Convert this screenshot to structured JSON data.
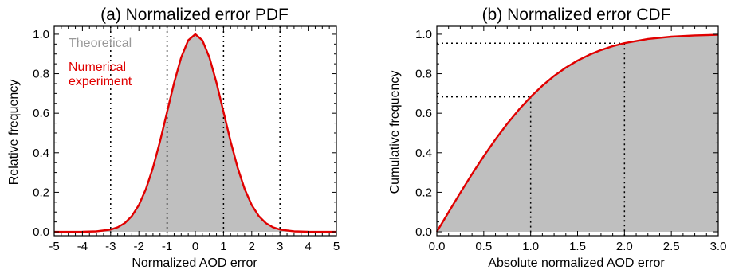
{
  "chart_data": [
    {
      "type": "area",
      "title": "(a) Normalized error PDF",
      "xlabel": "Normalized AOD error",
      "ylabel": "Relative frequency",
      "xlim": [
        -5,
        5
      ],
      "ylim": [
        -0.02,
        1.04
      ],
      "xticks": [
        -5,
        -4,
        -3,
        -2,
        -1,
        0,
        1,
        2,
        3,
        4,
        5
      ],
      "xtick_labels": [
        "-5",
        "-4",
        "-3",
        "-2",
        "-1",
        "0",
        "1",
        "2",
        "3",
        "4",
        "5"
      ],
      "yticks": [
        0.0,
        0.2,
        0.4,
        0.6,
        0.8,
        1.0
      ],
      "ytick_labels": [
        "0.0",
        "0.2",
        "0.4",
        "0.6",
        "0.8",
        "1.0"
      ],
      "series": [
        {
          "name": "Theoretical",
          "color": "#bfbfbf",
          "style": "filled",
          "x": [
            -5,
            -4.5,
            -4,
            -3.5,
            -3,
            -2.75,
            -2.5,
            -2.25,
            -2,
            -1.75,
            -1.5,
            -1.25,
            -1,
            -0.75,
            -0.5,
            -0.25,
            0,
            0.25,
            0.5,
            0.75,
            1,
            1.25,
            1.5,
            1.75,
            2,
            2.25,
            2.5,
            2.75,
            3,
            3.5,
            4,
            4.5,
            5
          ],
          "y": [
            0.0,
            0.0,
            0.0003,
            0.0022,
            0.0111,
            0.0228,
            0.0439,
            0.0796,
            0.1353,
            0.2163,
            0.3247,
            0.4578,
            0.6065,
            0.7548,
            0.8825,
            0.9692,
            1.0,
            0.9692,
            0.8825,
            0.7548,
            0.6065,
            0.4578,
            0.3247,
            0.2163,
            0.1353,
            0.0796,
            0.0439,
            0.0228,
            0.0111,
            0.0022,
            0.0003,
            0.0,
            0.0
          ]
        },
        {
          "name": "Numerical experiment",
          "color": "#e00000",
          "style": "line",
          "x": [
            -5,
            -4.5,
            -4,
            -3.5,
            -3,
            -2.75,
            -2.5,
            -2.25,
            -2,
            -1.75,
            -1.5,
            -1.25,
            -1,
            -0.75,
            -0.5,
            -0.25,
            0,
            0.25,
            0.5,
            0.75,
            1,
            1.25,
            1.5,
            1.75,
            2,
            2.25,
            2.5,
            2.75,
            3,
            3.5,
            4,
            4.5,
            5
          ],
          "y": [
            0.0,
            0.0,
            0.0003,
            0.0022,
            0.0111,
            0.0228,
            0.0439,
            0.0796,
            0.1353,
            0.2163,
            0.3247,
            0.4578,
            0.6065,
            0.7548,
            0.8825,
            0.9692,
            1.0,
            0.9692,
            0.8825,
            0.7548,
            0.6065,
            0.4578,
            0.3247,
            0.2163,
            0.1353,
            0.0796,
            0.0439,
            0.0228,
            0.0111,
            0.0022,
            0.0003,
            0.0,
            0.0
          ]
        }
      ],
      "vlines": [
        -3,
        -1,
        1,
        3
      ],
      "legend": {
        "placement": "top-left",
        "entries": [
          "Theoretical",
          "Numerical experiment"
        ]
      }
    },
    {
      "type": "area",
      "title": "(b) Normalized error CDF",
      "xlabel": "Absolute normalized AOD error",
      "ylabel": "Cumulative frequency",
      "xlim": [
        0.0,
        3.0
      ],
      "ylim": [
        -0.02,
        1.04
      ],
      "xticks": [
        0.0,
        0.5,
        1.0,
        1.5,
        2.0,
        2.5,
        3.0
      ],
      "xtick_labels": [
        "0.0",
        "0.5",
        "1.0",
        "1.5",
        "2.0",
        "2.5",
        "3.0"
      ],
      "yticks": [
        0.0,
        0.2,
        0.4,
        0.6,
        0.8,
        1.0
      ],
      "ytick_labels": [
        "0.0",
        "0.2",
        "0.4",
        "0.6",
        "0.8",
        "1.0"
      ],
      "series": [
        {
          "name": "Theoretical",
          "color": "#bfbfbf",
          "style": "filled",
          "x": [
            0,
            0.125,
            0.25,
            0.375,
            0.5,
            0.625,
            0.75,
            0.875,
            1.0,
            1.125,
            1.25,
            1.375,
            1.5,
            1.625,
            1.75,
            1.875,
            2.0,
            2.25,
            2.5,
            2.75,
            3.0
          ],
          "y": [
            0.0,
            0.0995,
            0.1974,
            0.2923,
            0.3829,
            0.468,
            0.5467,
            0.6184,
            0.6827,
            0.7394,
            0.7887,
            0.8308,
            0.8664,
            0.8958,
            0.9199,
            0.9392,
            0.9545,
            0.9756,
            0.9876,
            0.994,
            0.9973
          ]
        },
        {
          "name": "Numerical experiment",
          "color": "#e00000",
          "style": "line",
          "x": [
            0,
            0.125,
            0.25,
            0.375,
            0.5,
            0.625,
            0.75,
            0.875,
            1.0,
            1.125,
            1.25,
            1.375,
            1.5,
            1.625,
            1.75,
            1.875,
            2.0,
            2.25,
            2.5,
            2.75,
            3.0
          ],
          "y": [
            0.0,
            0.0995,
            0.1974,
            0.2923,
            0.3829,
            0.468,
            0.5467,
            0.6184,
            0.6827,
            0.7394,
            0.7887,
            0.8308,
            0.8664,
            0.8958,
            0.9199,
            0.9392,
            0.9545,
            0.9756,
            0.9876,
            0.994,
            0.9973
          ]
        }
      ],
      "reference_points": [
        {
          "x": 1.0,
          "y": 0.6827
        },
        {
          "x": 2.0,
          "y": 0.9545
        }
      ]
    }
  ]
}
